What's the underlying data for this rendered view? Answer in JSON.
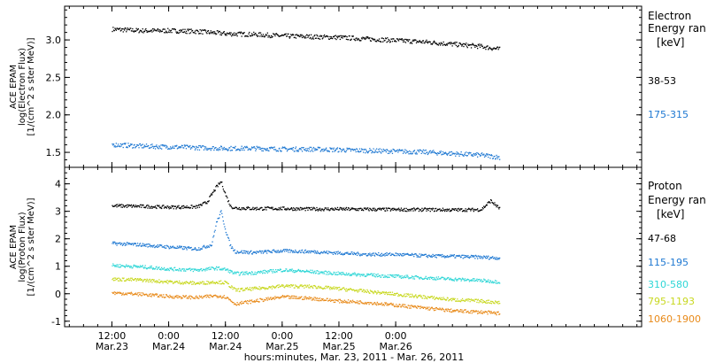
{
  "chart_data": [
    {
      "type": "scatter",
      "panel": "electron",
      "ylabel_lines": [
        "ACE EPAM",
        "log(Electron Flux)",
        "[1/(cm^2 s ster MeV)]"
      ],
      "ylim": [
        1.3,
        3.45
      ],
      "yticks": [
        1.5,
        2.0,
        2.5,
        3.0
      ],
      "ytick_labels": [
        "1.5",
        "2.0",
        "2.5",
        "3.0"
      ],
      "legend_title": [
        "Electron",
        "Energy ran"
      ],
      "legend_unit": "[keV]",
      "series": [
        {
          "name": "38-53",
          "color": "#000000",
          "x": [
            0,
            6,
            12,
            18,
            24,
            30,
            36,
            42,
            48,
            54,
            60,
            66,
            72,
            78,
            82
          ],
          "y": [
            3.15,
            3.13,
            3.13,
            3.12,
            3.09,
            3.08,
            3.06,
            3.05,
            3.04,
            3.02,
            3.0,
            2.98,
            2.95,
            2.92,
            2.88
          ]
        },
        {
          "name": "175-315",
          "color": "#1e78d2",
          "x": [
            0,
            6,
            12,
            18,
            24,
            30,
            36,
            42,
            48,
            54,
            60,
            66,
            72,
            78,
            82
          ],
          "y": [
            1.61,
            1.59,
            1.58,
            1.57,
            1.56,
            1.56,
            1.55,
            1.55,
            1.54,
            1.53,
            1.52,
            1.51,
            1.49,
            1.47,
            1.44
          ]
        }
      ]
    },
    {
      "type": "scatter",
      "panel": "proton",
      "ylabel_lines": [
        "ACE EPAM",
        "log(Proton Flux)",
        "[1/(cm^2 s ster MeV)]"
      ],
      "ylim": [
        -1.2,
        4.6
      ],
      "yticks": [
        -1,
        0,
        1,
        2,
        3,
        4
      ],
      "ytick_labels": [
        "-1",
        "0",
        "1",
        "2",
        "3",
        "4"
      ],
      "legend_title": [
        "Proton",
        "Energy ran"
      ],
      "legend_unit": "[keV]",
      "series": [
        {
          "name": "47-68",
          "color": "#000000",
          "x": [
            0,
            6,
            12,
            18,
            20,
            22,
            23,
            24,
            25,
            26,
            30,
            36,
            42,
            48,
            54,
            60,
            66,
            72,
            78,
            80,
            82
          ],
          "y": [
            3.22,
            3.2,
            3.17,
            3.18,
            3.35,
            3.9,
            4.1,
            3.6,
            3.2,
            3.14,
            3.12,
            3.12,
            3.1,
            3.1,
            3.09,
            3.08,
            3.08,
            3.07,
            3.08,
            3.4,
            3.1
          ]
        },
        {
          "name": "115-195",
          "color": "#1e78d2",
          "x": [
            0,
            6,
            12,
            18,
            21,
            22,
            23,
            24,
            25,
            26,
            30,
            36,
            42,
            48,
            54,
            60,
            66,
            72,
            78,
            82
          ],
          "y": [
            1.85,
            1.8,
            1.72,
            1.65,
            1.8,
            2.6,
            3.0,
            2.3,
            1.75,
            1.55,
            1.52,
            1.58,
            1.55,
            1.5,
            1.45,
            1.45,
            1.4,
            1.38,
            1.35,
            1.32
          ]
        },
        {
          "name": "310-580",
          "color": "#2ed6d6",
          "x": [
            0,
            6,
            12,
            18,
            22,
            24,
            26,
            30,
            36,
            42,
            48,
            54,
            60,
            66,
            72,
            78,
            82
          ],
          "y": [
            1.05,
            1.0,
            0.92,
            0.88,
            0.95,
            0.9,
            0.75,
            0.78,
            0.88,
            0.82,
            0.75,
            0.7,
            0.65,
            0.6,
            0.55,
            0.5,
            0.45
          ]
        },
        {
          "name": "795-1193",
          "color": "#c8d820",
          "x": [
            0,
            6,
            12,
            18,
            22,
            24,
            26,
            30,
            36,
            42,
            48,
            54,
            60,
            66,
            72,
            78,
            82
          ],
          "y": [
            0.55,
            0.52,
            0.45,
            0.4,
            0.45,
            0.42,
            0.15,
            0.2,
            0.3,
            0.28,
            0.2,
            0.1,
            0.0,
            -0.1,
            -0.2,
            -0.25,
            -0.3
          ]
        },
        {
          "name": "1060-1900",
          "color": "#e88a1a",
          "x": [
            0,
            6,
            12,
            18,
            22,
            24,
            26,
            30,
            36,
            42,
            48,
            54,
            60,
            66,
            72,
            78,
            82
          ],
          "y": [
            0.05,
            0.0,
            -0.08,
            -0.12,
            -0.05,
            -0.1,
            -0.35,
            -0.25,
            -0.1,
            -0.15,
            -0.25,
            -0.3,
            -0.4,
            -0.5,
            -0.6,
            -0.65,
            -0.7
          ]
        }
      ]
    }
  ],
  "x_axis": {
    "range_hours": [
      -10,
      112
    ],
    "ticks": [
      {
        "h": 0,
        "top": "12:00",
        "bottom": "Mar.23"
      },
      {
        "h": 12,
        "top": "0:00",
        "bottom": "Mar.24"
      },
      {
        "h": 24,
        "top": "12:00",
        "bottom": "Mar.24"
      },
      {
        "h": 36,
        "top": "0:00",
        "bottom": "Mar.25"
      },
      {
        "h": 48,
        "top": "12:00",
        "bottom": "Mar.25"
      },
      {
        "h": 60,
        "top": "0:00",
        "bottom": "Mar.26"
      }
    ],
    "xlabel": "hours:minutes, Mar. 23, 2011 - Mar. 26, 2011"
  }
}
